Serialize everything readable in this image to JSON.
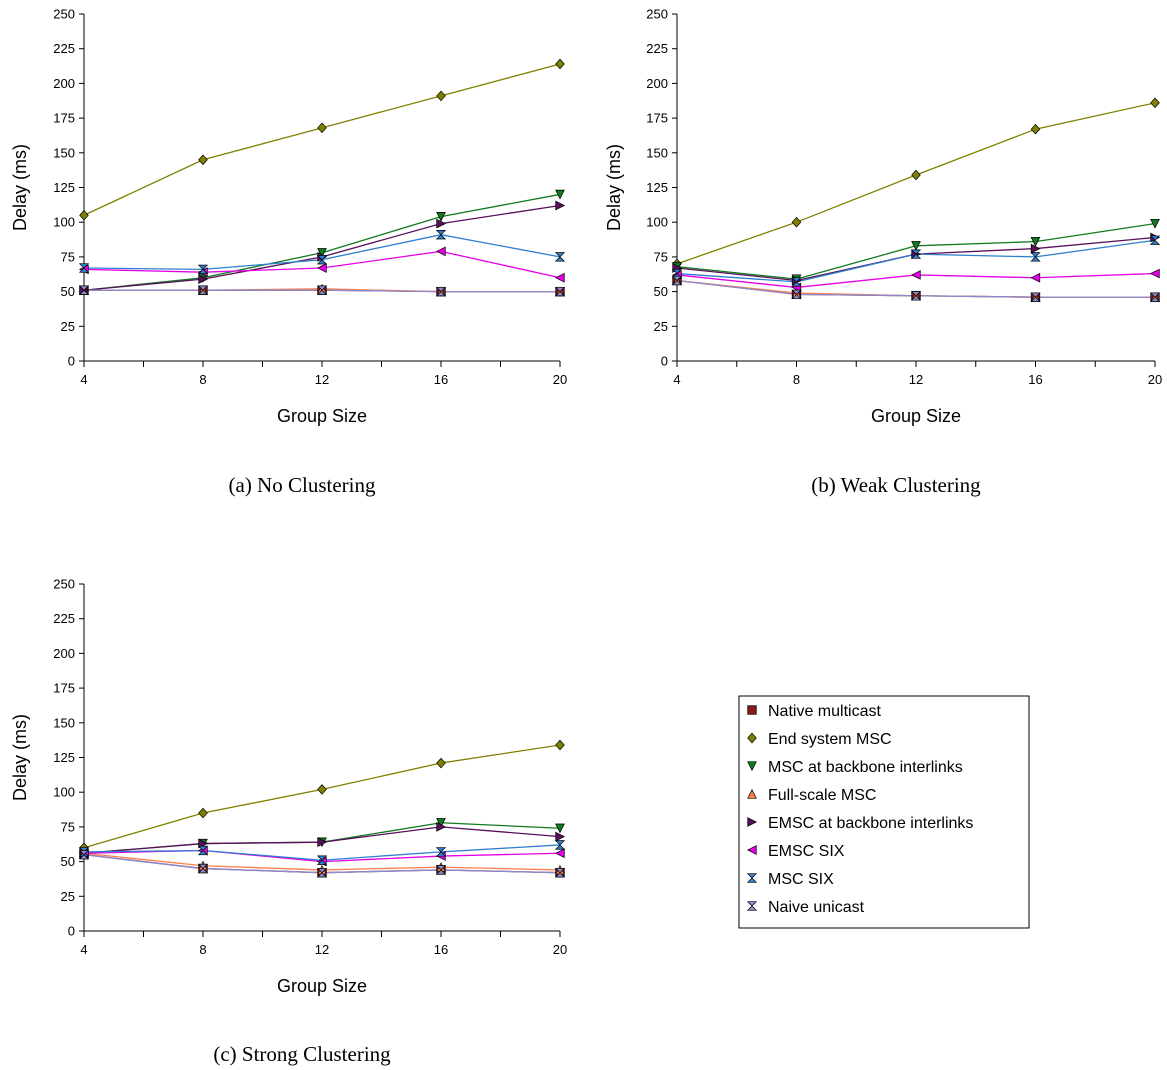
{
  "chart_data": [
    {
      "type": "line",
      "caption": "(a) No Clustering",
      "xlabel": "Group Size",
      "ylabel": "Delay (ms)",
      "x": [
        4,
        8,
        12,
        16,
        20
      ],
      "xlim": [
        4,
        20
      ],
      "ylim": [
        0,
        250
      ],
      "yticks": [
        0,
        25,
        50,
        75,
        100,
        125,
        150,
        175,
        200,
        225,
        250
      ],
      "grid": false,
      "series": [
        {
          "name": "Native multicast",
          "values": [
            51,
            51,
            51,
            50,
            50
          ]
        },
        {
          "name": "End system MSC",
          "values": [
            105,
            145,
            168,
            191,
            214
          ]
        },
        {
          "name": "MSC at backbone interlinks",
          "values": [
            51,
            60,
            78,
            104,
            120
          ]
        },
        {
          "name": "Full-scale MSC",
          "values": [
            51,
            51,
            52,
            50,
            50
          ]
        },
        {
          "name": "EMSC at backbone interlinks",
          "values": [
            51,
            59,
            75,
            99,
            112
          ]
        },
        {
          "name": "EMSC SIX",
          "values": [
            66,
            64,
            67,
            79,
            60
          ]
        },
        {
          "name": "MSC SIX",
          "values": [
            67,
            66,
            73,
            91,
            75
          ]
        },
        {
          "name": "Naive unicast",
          "values": [
            51,
            51,
            51,
            50,
            50
          ]
        }
      ]
    },
    {
      "type": "line",
      "caption": "(b) Weak Clustering",
      "xlabel": "Group Size",
      "ylabel": "Delay (ms)",
      "x": [
        4,
        8,
        12,
        16,
        20
      ],
      "xlim": [
        4,
        20
      ],
      "ylim": [
        0,
        250
      ],
      "yticks": [
        0,
        25,
        50,
        75,
        100,
        125,
        150,
        175,
        200,
        225,
        250
      ],
      "grid": false,
      "series": [
        {
          "name": "Native multicast",
          "values": [
            58,
            48,
            47,
            46,
            46
          ]
        },
        {
          "name": "End system MSC",
          "values": [
            70,
            100,
            134,
            167,
            186
          ]
        },
        {
          "name": "MSC at backbone interlinks",
          "values": [
            68,
            59,
            83,
            86,
            99
          ]
        },
        {
          "name": "Full-scale MSC",
          "values": [
            58,
            49,
            47,
            46,
            46
          ]
        },
        {
          "name": "EMSC at backbone interlinks",
          "values": [
            67,
            58,
            77,
            81,
            89
          ]
        },
        {
          "name": "EMSC SIX",
          "values": [
            62,
            53,
            62,
            60,
            63
          ]
        },
        {
          "name": "MSC SIX",
          "values": [
            63,
            57,
            77,
            75,
            87
          ]
        },
        {
          "name": "Naive unicast",
          "values": [
            58,
            48,
            47,
            46,
            46
          ]
        }
      ]
    },
    {
      "type": "line",
      "caption": "(c) Strong Clustering",
      "xlabel": "Group Size",
      "ylabel": "Delay (ms)",
      "x": [
        4,
        8,
        12,
        16,
        20
      ],
      "xlim": [
        4,
        20
      ],
      "ylim": [
        0,
        250
      ],
      "yticks": [
        0,
        25,
        50,
        75,
        100,
        125,
        150,
        175,
        200,
        225,
        250
      ],
      "grid": false,
      "series": [
        {
          "name": "Native multicast",
          "values": [
            55,
            45,
            42,
            44,
            42
          ]
        },
        {
          "name": "End system MSC",
          "values": [
            60,
            85,
            102,
            121,
            134
          ]
        },
        {
          "name": "MSC at backbone interlinks",
          "values": [
            56,
            63,
            64,
            78,
            74
          ]
        },
        {
          "name": "Full-scale MSC",
          "values": [
            56,
            47,
            44,
            46,
            44
          ]
        },
        {
          "name": "EMSC at backbone interlinks",
          "values": [
            56,
            63,
            64,
            75,
            68
          ]
        },
        {
          "name": "EMSC SIX",
          "values": [
            56,
            58,
            50,
            54,
            56
          ]
        },
        {
          "name": "MSC SIX",
          "values": [
            57,
            58,
            51,
            57,
            62
          ]
        },
        {
          "name": "Naive unicast",
          "values": [
            55,
            45,
            42,
            44,
            42
          ]
        }
      ]
    }
  ],
  "legend": {
    "placement": "right of panel (c)",
    "entries": [
      {
        "name": "Native multicast",
        "color": "#8b1a1a",
        "marker": "square"
      },
      {
        "name": "End system MSC",
        "color": "#808000",
        "marker": "diamond"
      },
      {
        "name": "MSC at backbone interlinks",
        "color": "#117a1f",
        "marker": "triangle-down"
      },
      {
        "name": "Full-scale MSC",
        "color": "#ff7f50",
        "marker": "triangle-up"
      },
      {
        "name": "EMSC at backbone interlinks",
        "color": "#5a0f5a",
        "marker": "triangle-right"
      },
      {
        "name": "EMSC SIX",
        "color": "#e600e6",
        "marker": "triangle-left"
      },
      {
        "name": "MSC SIX",
        "color": "#2f7fd0",
        "marker": "bowtie"
      },
      {
        "name": "Naive unicast",
        "color": "#8a8ad0",
        "marker": "hourglass"
      }
    ]
  }
}
